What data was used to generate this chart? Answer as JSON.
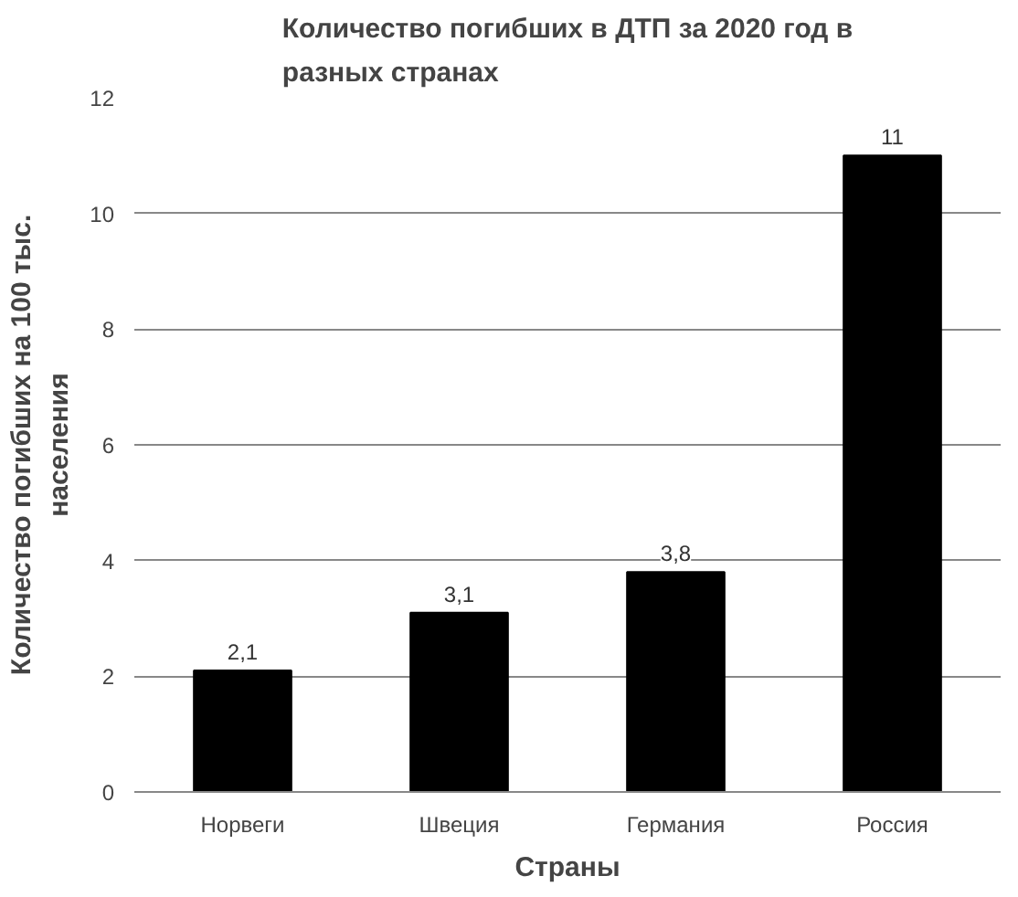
{
  "chart_data": {
    "type": "bar",
    "title": "Количество погибших в ДТП за 2020 год в разных странах",
    "xlabel": "Страны",
    "ylabel": "Количество погибших на 100 тыс. населения",
    "categories": [
      "Норвеги",
      "Швеция",
      "Германия",
      "Россия"
    ],
    "values": [
      2.1,
      3.1,
      3.8,
      11
    ],
    "value_labels": [
      "2,1",
      "3,1",
      "3,8",
      "11"
    ],
    "color": "#000000",
    "ylim": [
      0,
      12
    ],
    "yticks": [
      0,
      2,
      4,
      6,
      8,
      10,
      12
    ],
    "grid": "y"
  }
}
